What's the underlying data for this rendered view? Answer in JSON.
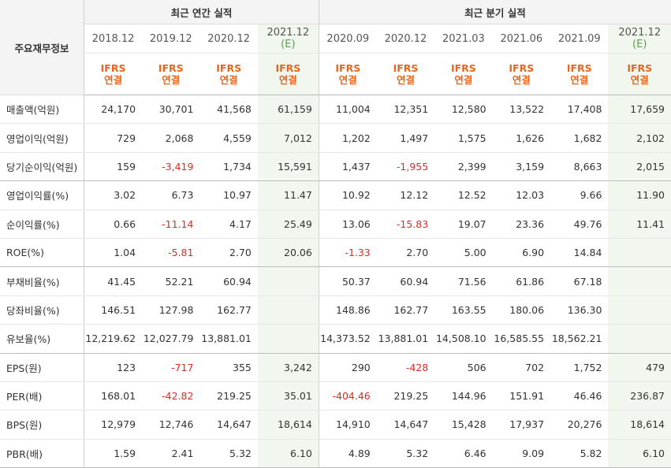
{
  "header": {
    "label_title": "주요재무정보",
    "annual_title": "최근 연간 실적",
    "quarter_title": "최근 분기 실적"
  },
  "periods": [
    {
      "date": "2018.12",
      "est": "",
      "std": "IFRS",
      "type": "연결"
    },
    {
      "date": "2019.12",
      "est": "",
      "std": "IFRS",
      "type": "연결"
    },
    {
      "date": "2020.12",
      "est": "",
      "std": "IFRS",
      "type": "연결"
    },
    {
      "date": "2021.12",
      "est": "(E)",
      "std": "IFRS",
      "type": "연결"
    },
    {
      "date": "2020.09",
      "est": "",
      "std": "IFRS",
      "type": "연결"
    },
    {
      "date": "2020.12",
      "est": "",
      "std": "IFRS",
      "type": "연결"
    },
    {
      "date": "2021.03",
      "est": "",
      "std": "IFRS",
      "type": "연결"
    },
    {
      "date": "2021.06",
      "est": "",
      "std": "IFRS",
      "type": "연결"
    },
    {
      "date": "2021.09",
      "est": "",
      "std": "IFRS",
      "type": "연결"
    },
    {
      "date": "2021.12",
      "est": "(E)",
      "std": "IFRS",
      "type": "연결"
    }
  ],
  "rows": [
    {
      "label": "매출액(억원)",
      "values": [
        "24,170",
        "30,701",
        "41,568",
        "61,159",
        "11,004",
        "12,351",
        "12,580",
        "13,522",
        "17,408",
        "17,659"
      ]
    },
    {
      "label": "영업이익(억원)",
      "values": [
        "729",
        "2,068",
        "4,559",
        "7,012",
        "1,202",
        "1,497",
        "1,575",
        "1,626",
        "1,682",
        "2,102"
      ]
    },
    {
      "label": "당기순이익(억원)",
      "values": [
        "159",
        "-3,419",
        "1,734",
        "15,591",
        "1,437",
        "-1,955",
        "2,399",
        "3,159",
        "8,663",
        "2,015"
      ]
    },
    {
      "label": "영업이익률(%)",
      "values": [
        "3.02",
        "6.73",
        "10.97",
        "11.47",
        "10.92",
        "12.12",
        "12.52",
        "12.03",
        "9.66",
        "11.90"
      ]
    },
    {
      "label": "순이익률(%)",
      "values": [
        "0.66",
        "-11.14",
        "4.17",
        "25.49",
        "13.06",
        "-15.83",
        "19.07",
        "23.36",
        "49.76",
        "11.41"
      ]
    },
    {
      "label": "ROE(%)",
      "values": [
        "1.04",
        "-5.81",
        "2.70",
        "20.06",
        "-1.33",
        "2.70",
        "5.00",
        "6.90",
        "14.84",
        ""
      ]
    },
    {
      "label": "부채비율(%)",
      "values": [
        "41.45",
        "52.21",
        "60.94",
        "",
        "50.37",
        "60.94",
        "71.56",
        "61.86",
        "67.18",
        ""
      ]
    },
    {
      "label": "당좌비율(%)",
      "values": [
        "146.51",
        "127.98",
        "162.77",
        "",
        "148.86",
        "162.77",
        "163.55",
        "180.06",
        "136.30",
        ""
      ]
    },
    {
      "label": "유보율(%)",
      "values": [
        "12,219.62",
        "12,027.79",
        "13,881.01",
        "",
        "14,373.52",
        "13,881.01",
        "14,508.10",
        "16,585.55",
        "18,562.21",
        ""
      ]
    },
    {
      "label": "EPS(원)",
      "values": [
        "123",
        "-717",
        "355",
        "3,242",
        "290",
        "-428",
        "506",
        "702",
        "1,752",
        "479"
      ]
    },
    {
      "label": "PER(배)",
      "values": [
        "168.01",
        "-42.82",
        "219.25",
        "35.01",
        "-404.46",
        "219.25",
        "144.96",
        "151.91",
        "46.46",
        "236.87"
      ]
    },
    {
      "label": "BPS(원)",
      "values": [
        "12,979",
        "12,746",
        "14,647",
        "18,614",
        "14,910",
        "14,647",
        "15,428",
        "17,937",
        "20,276",
        "18,614"
      ]
    },
    {
      "label": "PBR(배)",
      "values": [
        "1.59",
        "2.41",
        "5.32",
        "6.10",
        "4.89",
        "5.32",
        "6.46",
        "9.09",
        "5.82",
        "6.10"
      ]
    }
  ],
  "group_end_rows": [
    2,
    5,
    8,
    12
  ],
  "colors": {
    "negative": "#e8261e",
    "ifrs": "#e8661e",
    "estimate_bg": "#f1f6ee",
    "estimate_mark": "#5aa04b"
  }
}
